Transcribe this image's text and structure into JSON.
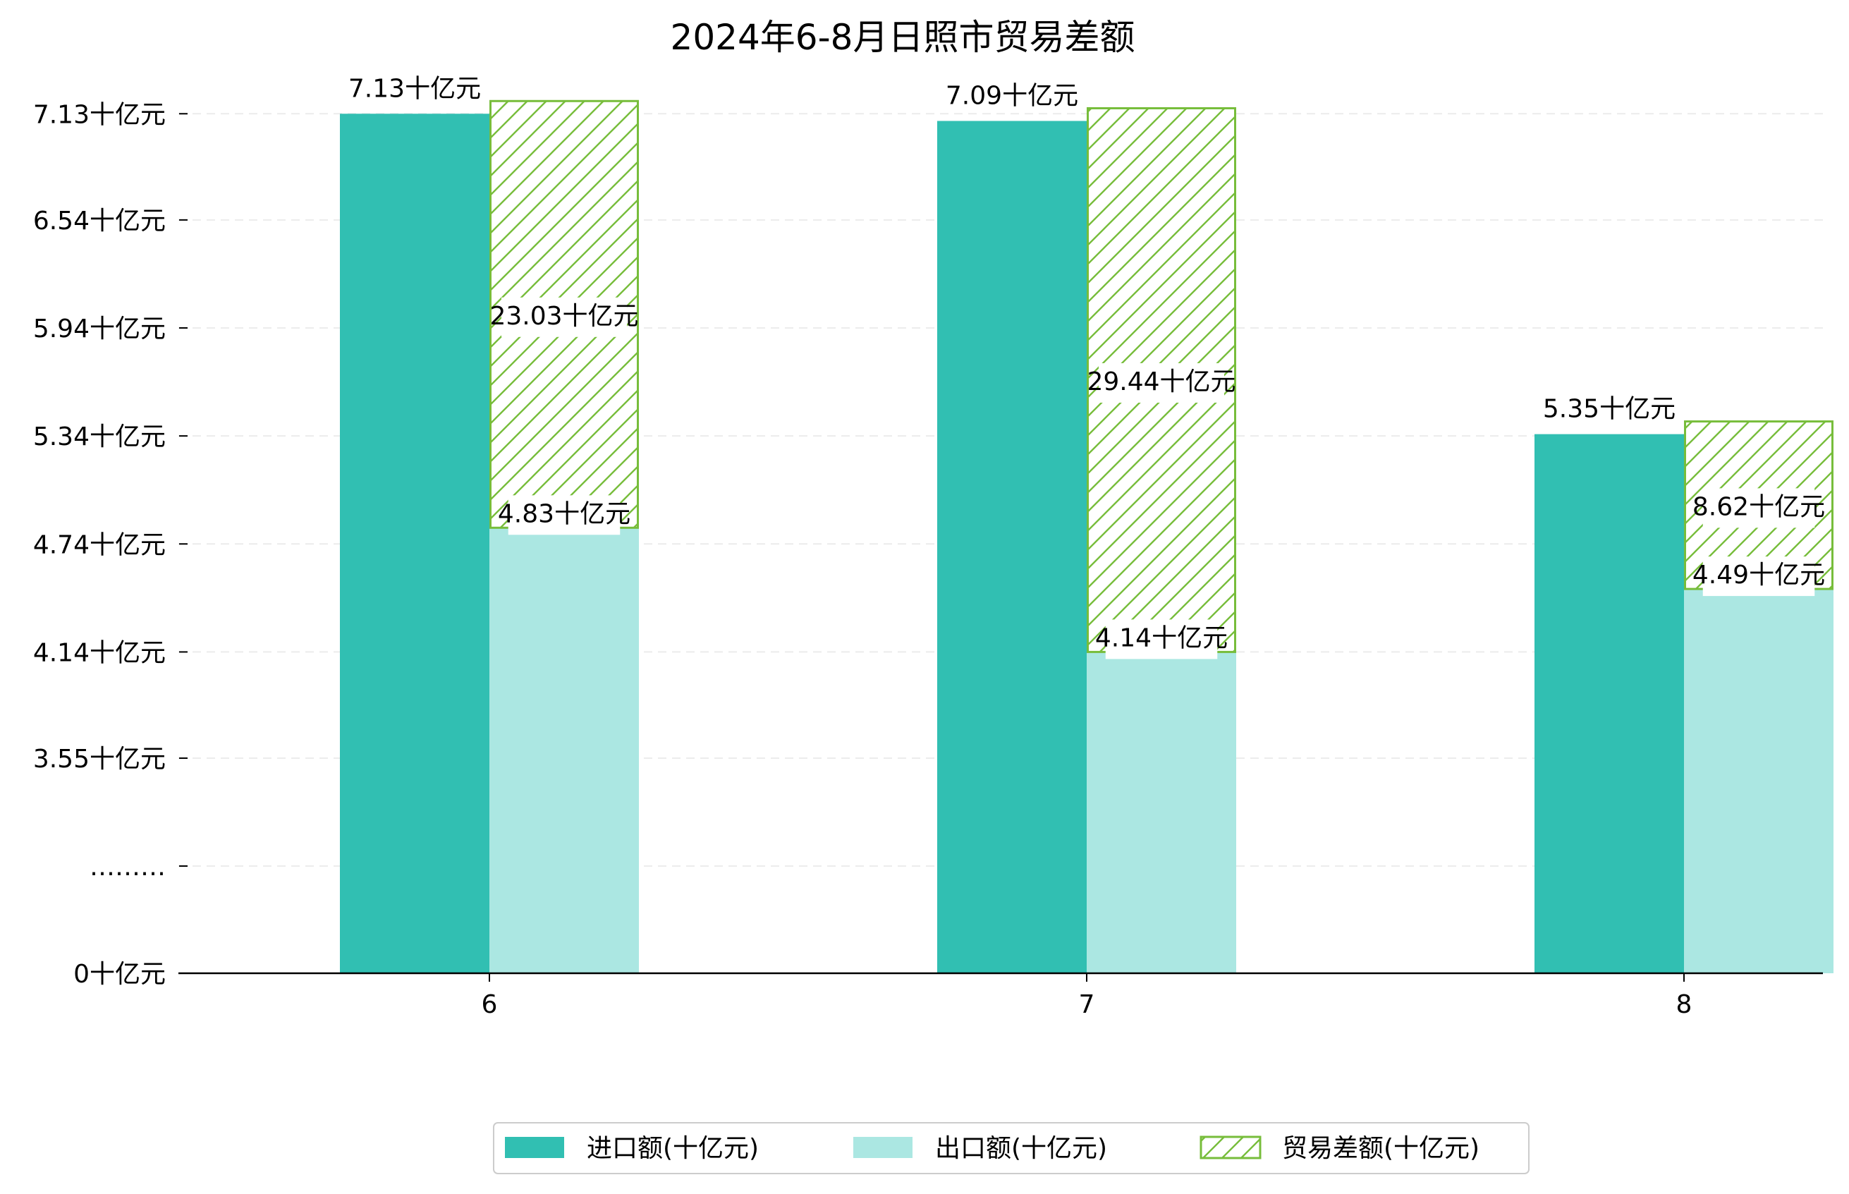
{
  "chart_data": {
    "type": "bar",
    "title": "2024年6-8月日照市贸易差额",
    "categories": [
      "6",
      "7",
      "8"
    ],
    "series": [
      {
        "name": "进口额(十亿元)",
        "values": [
          7.13,
          7.09,
          5.35
        ],
        "labels": [
          "7.13十亿元",
          "7.09十亿元",
          "5.35十亿元"
        ],
        "color": "#31bfb2"
      },
      {
        "name": "出口额(十亿元)",
        "values": [
          4.83,
          4.14,
          4.49
        ],
        "labels": [
          "4.83十亿元",
          "4.14十亿元",
          "4.49十亿元"
        ],
        "color": "#abe7e2"
      },
      {
        "name": "贸易差额(十亿元)",
        "values": [
          23.03,
          29.44,
          8.62
        ],
        "labels": [
          "23.03十亿元",
          "29.44十亿元",
          "8.62十亿元"
        ],
        "color": "#77bd3b"
      }
    ],
    "y_ticks": [
      {
        "label": "0十亿元",
        "value": 0
      },
      {
        "label": "………",
        "value": null
      },
      {
        "label": "3.55十亿元",
        "value": 3.55
      },
      {
        "label": "4.14十亿元",
        "value": 4.14
      },
      {
        "label": "4.74十亿元",
        "value": 4.74
      },
      {
        "label": "5.34十亿元",
        "value": 5.34
      },
      {
        "label": "5.94十亿元",
        "value": 5.94
      },
      {
        "label": "6.54十亿元",
        "value": 6.54
      },
      {
        "label": "7.13十亿元",
        "value": 7.13
      }
    ],
    "y_scale": "broken",
    "ylim": [
      0,
      7.13
    ],
    "grid": true,
    "legend_position": "bottom"
  }
}
